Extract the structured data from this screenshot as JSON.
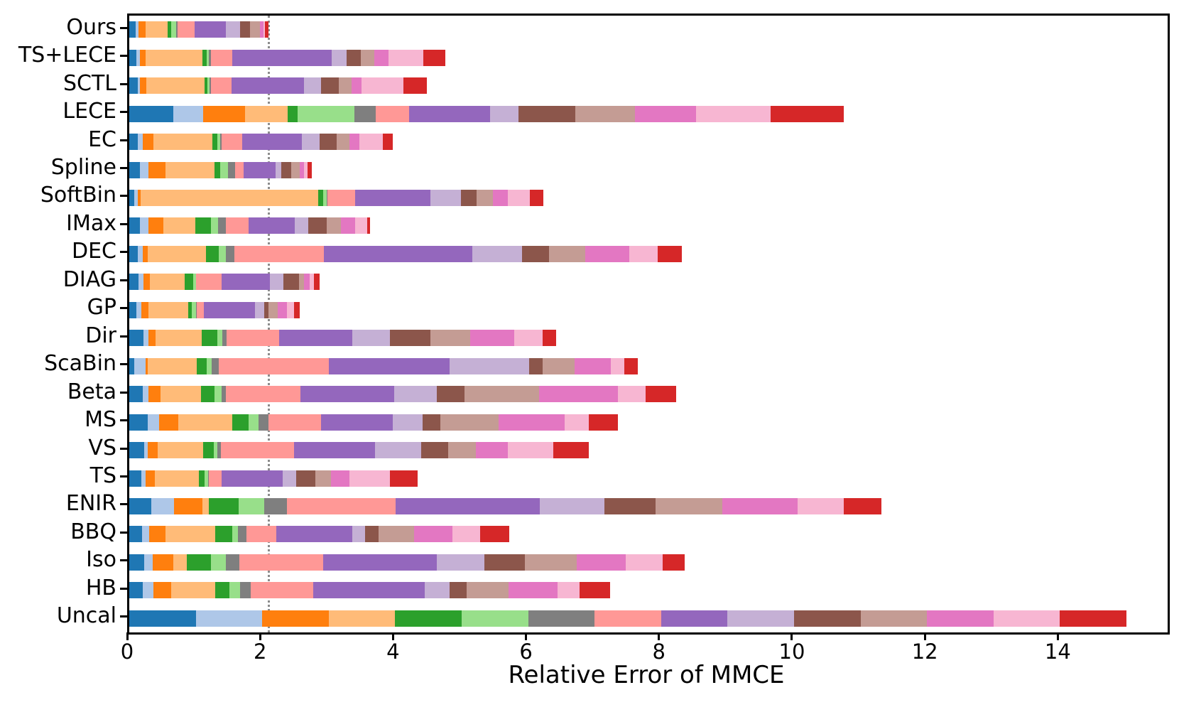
{
  "chart_data": {
    "type": "bar",
    "orientation": "horizontal",
    "stacked": true,
    "title": "",
    "xlabel": "Relative Error of MMCE",
    "ylabel": "",
    "xlim": [
      0,
      15.62
    ],
    "xticks": [
      0,
      2,
      4,
      6,
      8,
      10,
      12,
      14
    ],
    "grid": false,
    "legend_position": "none",
    "reference_line": {
      "x": 2.08,
      "style": "dotted",
      "color": "#8c8c8c"
    },
    "num_stack_segments": 15,
    "segment_colors": [
      "#1f77b4",
      "#aec7e8",
      "#ff7f0e",
      "#ffbb78",
      "#2ca02c",
      "#98df8a",
      "#7f7f7f",
      "#ff9896",
      "#9467bd",
      "#c5b0d5",
      "#8c564b",
      "#c49c94",
      "#e377c2",
      "#f7b6d2",
      "#d62728"
    ],
    "categories": [
      "Ours",
      "TS+LECE",
      "SCTL",
      "LECE",
      "EC",
      "Spline",
      "SoftBin",
      "IMax",
      "DEC",
      "DIAG",
      "GP",
      "Dir",
      "ScaBin",
      "Beta",
      "MS",
      "VS",
      "TS",
      "ENIR",
      "BBQ",
      "Iso",
      "HB",
      "Uncal"
    ],
    "rows": [
      {
        "label": "Ours",
        "values": [
          0.1,
          0.04,
          0.11,
          0.33,
          0.05,
          0.08,
          0.02,
          0.25,
          0.47,
          0.22,
          0.15,
          0.15,
          0.05,
          0.02,
          0.06
        ]
      },
      {
        "label": "TS+LECE",
        "values": [
          0.11,
          0.05,
          0.09,
          0.85,
          0.06,
          0.04,
          0.03,
          0.32,
          1.5,
          0.22,
          0.21,
          0.21,
          0.21,
          0.53,
          0.33
        ]
      },
      {
        "label": "SCTL",
        "values": [
          0.13,
          0.03,
          0.1,
          0.87,
          0.05,
          0.03,
          0.02,
          0.31,
          1.09,
          0.26,
          0.26,
          0.19,
          0.15,
          0.64,
          0.35
        ]
      },
      {
        "label": "LECE",
        "values": [
          0.66,
          0.45,
          0.63,
          0.64,
          0.15,
          0.86,
          0.32,
          0.5,
          1.22,
          0.43,
          0.85,
          0.9,
          0.92,
          1.12,
          1.1
        ]
      },
      {
        "label": "EC",
        "values": [
          0.13,
          0.07,
          0.16,
          0.89,
          0.07,
          0.05,
          0.02,
          0.31,
          0.9,
          0.26,
          0.26,
          0.19,
          0.15,
          0.36,
          0.14
        ]
      },
      {
        "label": "Spline",
        "values": [
          0.16,
          0.13,
          0.26,
          0.73,
          0.09,
          0.12,
          0.1,
          0.13,
          0.48,
          0.09,
          0.15,
          0.12,
          0.07,
          0.05,
          0.07
        ]
      },
      {
        "label": "SoftBin",
        "values": [
          0.07,
          0.06,
          0.04,
          2.67,
          0.08,
          0.05,
          0.01,
          0.42,
          1.13,
          0.46,
          0.24,
          0.24,
          0.23,
          0.33,
          0.2
        ]
      },
      {
        "label": "IMax",
        "values": [
          0.16,
          0.13,
          0.22,
          0.48,
          0.24,
          0.11,
          0.11,
          0.35,
          0.69,
          0.2,
          0.28,
          0.22,
          0.21,
          0.18,
          0.04
        ]
      },
      {
        "label": "DEC",
        "values": [
          0.13,
          0.07,
          0.08,
          0.87,
          0.2,
          0.1,
          0.13,
          1.35,
          2.23,
          0.75,
          0.41,
          0.54,
          0.66,
          0.43,
          0.36
        ]
      },
      {
        "label": "DIAG",
        "values": [
          0.14,
          0.07,
          0.1,
          0.52,
          0.13,
          0.04,
          0.01,
          0.38,
          0.73,
          0.2,
          0.23,
          0.08,
          0.09,
          0.06,
          0.08
        ]
      },
      {
        "label": "GP",
        "values": [
          0.11,
          0.07,
          0.11,
          0.6,
          0.05,
          0.07,
          0.01,
          0.1,
          0.77,
          0.14,
          0.07,
          0.13,
          0.14,
          0.11,
          0.09
        ]
      },
      {
        "label": "Dir",
        "values": [
          0.21,
          0.08,
          0.11,
          0.69,
          0.23,
          0.08,
          0.06,
          0.79,
          1.11,
          0.56,
          0.61,
          0.6,
          0.66,
          0.43,
          0.2
        ]
      },
      {
        "label": "ScaBin",
        "values": [
          0.07,
          0.18,
          0.03,
          0.74,
          0.14,
          0.08,
          0.11,
          1.65,
          1.82,
          1.2,
          0.2,
          0.48,
          0.54,
          0.21,
          0.2
        ]
      },
      {
        "label": "Beta",
        "values": [
          0.2,
          0.09,
          0.18,
          0.61,
          0.2,
          0.11,
          0.06,
          1.12,
          1.42,
          0.64,
          0.41,
          1.12,
          1.19,
          0.42,
          0.46
        ]
      },
      {
        "label": "MS",
        "values": [
          0.28,
          0.17,
          0.29,
          0.81,
          0.24,
          0.15,
          0.15,
          0.79,
          1.08,
          0.45,
          0.27,
          0.88,
          0.99,
          0.36,
          0.44
        ]
      },
      {
        "label": "VS",
        "values": [
          0.22,
          0.06,
          0.15,
          0.68,
          0.16,
          0.06,
          0.05,
          1.1,
          1.22,
          0.69,
          0.41,
          0.41,
          0.48,
          0.69,
          0.53
        ]
      },
      {
        "label": "TS",
        "values": [
          0.18,
          0.07,
          0.13,
          0.67,
          0.08,
          0.06,
          0.01,
          0.19,
          0.92,
          0.2,
          0.29,
          0.24,
          0.27,
          0.61,
          0.42
        ]
      },
      {
        "label": "ENIR",
        "values": [
          0.33,
          0.34,
          0.43,
          0.1,
          0.45,
          0.38,
          0.34,
          1.64,
          2.17,
          0.97,
          0.77,
          1.0,
          1.14,
          0.69,
          0.57
        ]
      },
      {
        "label": "BBQ",
        "values": [
          0.19,
          0.11,
          0.24,
          0.75,
          0.26,
          0.09,
          0.12,
          0.45,
          1.15,
          0.19,
          0.2,
          0.53,
          0.58,
          0.42,
          0.44
        ]
      },
      {
        "label": "Iso",
        "values": [
          0.22,
          0.13,
          0.31,
          0.21,
          0.36,
          0.22,
          0.21,
          1.26,
          1.71,
          0.71,
          0.61,
          0.78,
          0.74,
          0.55,
          0.34
        ]
      },
      {
        "label": "HB",
        "values": [
          0.2,
          0.16,
          0.27,
          0.66,
          0.22,
          0.16,
          0.16,
          0.94,
          1.68,
          0.37,
          0.26,
          0.63,
          0.73,
          0.34,
          0.45
        ]
      },
      {
        "label": "Uncal",
        "values": [
          1.0,
          1.0,
          1.0,
          1.0,
          1.0,
          1.0,
          1.0,
          1.0,
          1.0,
          1.0,
          1.0,
          1.0,
          1.0,
          1.0,
          1.0
        ]
      }
    ]
  }
}
